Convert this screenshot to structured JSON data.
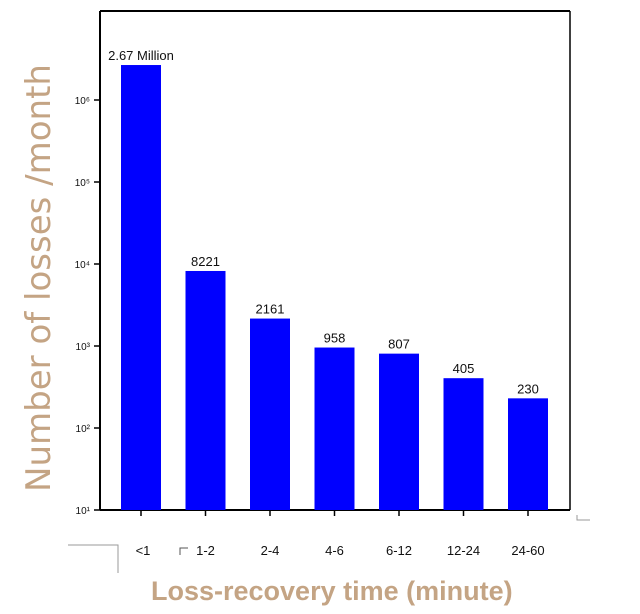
{
  "chart_data": {
    "type": "bar",
    "scale": "log",
    "categories": [
      "<1",
      "1-2",
      "2-4",
      "4-6",
      "6-12",
      "12-24",
      "24-60"
    ],
    "values": [
      2670000,
      8221,
      2161,
      958,
      807,
      405,
      230
    ],
    "data_labels": [
      "2.67 Million",
      "8221",
      "2161",
      "958",
      "807",
      "405",
      "230"
    ],
    "ylim": [
      10,
      10000000
    ],
    "yticks": [
      10,
      100,
      1000,
      10000,
      100000,
      1000000
    ],
    "ytick_labels": [
      "10¹",
      "10²",
      "10³",
      "10⁴",
      "10⁵",
      "10⁶"
    ],
    "xlabel": "Loss-recovery time (minute)",
    "ylabel": "Number of losses /month",
    "bar_color": "#0000ff",
    "grid": false
  }
}
